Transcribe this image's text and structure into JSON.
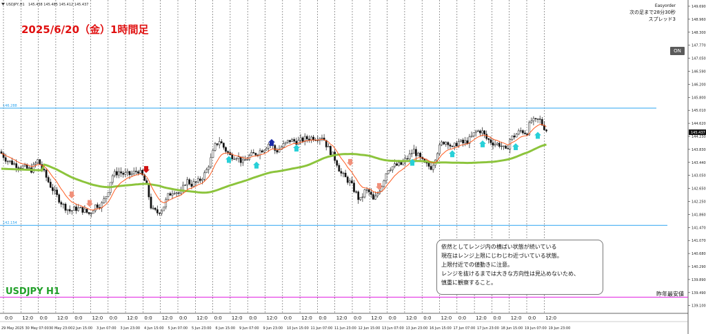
{
  "header": {
    "symbol_label": "USDJPY,H1",
    "ohlc": "145.438 145.485 145.412 145.437"
  },
  "chart_title": "2025/6/20（金）1時間足",
  "symbol_big": "USDJPY H1",
  "ea_panel": {
    "name": "Easyorder",
    "next_bar": "次の足まで28分30秒",
    "spread": "スプレッド3",
    "on_button": "ON"
  },
  "note": {
    "lines": [
      "依然としてレンジ内の横ばい状態が続いている",
      "現在はレンジ上限にじわじわ近づいている状態。",
      "上限付近での値動きに注意。",
      "レンジを抜けるまでは大きな方向性は見込めないため、",
      "慎重に観察すること。"
    ]
  },
  "level_labels": {
    "upper": "146.288",
    "lower": "142.154",
    "prev_year_low_label": "昨年最安値"
  },
  "colors": {
    "candles": "#111111",
    "ma_fast": "#ff5a1e",
    "ma_slow": "#8cc43c",
    "range_lines": "#2aa4f0",
    "prev_year_low": "#e020e0",
    "title_red": "#e01010",
    "title_green": "#22a02a"
  },
  "chart_data": {
    "type": "candlestick",
    "title": "2025/6/20（金）1時間足",
    "symbol": "USDJPY H1",
    "y_ticks": [
      "149.690",
      "148.960",
      "148.300",
      "147.770",
      "147.050",
      "146.590",
      "146.200",
      "145.800",
      "145.010",
      "144.620",
      "144.230",
      "143.830",
      "143.440",
      "143.050",
      "142.650",
      "142.250",
      "141.860",
      "141.470",
      "141.070",
      "140.680",
      "140.290",
      "139.890",
      "139.490",
      "139.100"
    ],
    "current_price": "145.437",
    "x_ticks": [
      "29 May 2025",
      "30 May 07:00",
      "30 May 23:00",
      "2 Jun 15:00",
      "3 Jun 07:00",
      "3 Jun 23:00",
      "4 Jun 15:00",
      "5 Jun 07:00",
      "5 Jun 23:00",
      "6 Jun 15:00",
      "9 Jun 07:00",
      "9 Jun 23:00",
      "10 Jun 15:00",
      "11 Jun 07:00",
      "11 Jun 23:00",
      "12 Jun 15:00",
      "13 Jun 07:00",
      "13 Jun 23:00",
      "16 Jun 15:00",
      "17 Jun 07:00",
      "17 Jun 23:00",
      "18 Jun 15:00",
      "19 Jun 07:00",
      "19 Jun 23:00"
    ],
    "hour_ticks": [
      "0:0",
      "12:0",
      "0:0",
      "12:0",
      "0:0",
      "12:0",
      "0:0",
      "12:0",
      "0:0",
      "12:0",
      "0:0",
      "12:0",
      "0:0",
      "12:0",
      "0:0",
      "12:0",
      "0:0",
      "12:0",
      "0:0",
      "12:0",
      "0:0",
      "12:0",
      "0:0",
      "12:0",
      "0:0",
      "12:0",
      "0:0",
      "12:0",
      "0:0",
      "12:0",
      "0:0",
      "12:0"
    ],
    "path_points": [
      [
        0,
        144.75
      ],
      [
        10,
        144.45
      ],
      [
        22,
        144.3
      ],
      [
        34,
        144.2
      ],
      [
        45,
        144.1
      ],
      [
        55,
        144.45
      ],
      [
        62,
        144.1
      ],
      [
        72,
        143.6
      ],
      [
        82,
        143.2
      ],
      [
        92,
        142.85
      ],
      [
        102,
        142.65
      ],
      [
        110,
        142.75
      ],
      [
        120,
        142.7
      ],
      [
        130,
        142.55
      ],
      [
        138,
        142.85
      ],
      [
        148,
        142.9
      ],
      [
        156,
        143.3
      ],
      [
        162,
        143.9
      ],
      [
        172,
        144.05
      ],
      [
        180,
        143.95
      ],
      [
        190,
        143.95
      ],
      [
        200,
        144.1
      ],
      [
        208,
        143.85
      ],
      [
        214,
        143.4
      ],
      [
        220,
        142.7
      ],
      [
        228,
        142.6
      ],
      [
        236,
        142.75
      ],
      [
        244,
        143.2
      ],
      [
        252,
        143.4
      ],
      [
        262,
        143.25
      ],
      [
        270,
        143.75
      ],
      [
        278,
        143.6
      ],
      [
        288,
        143.7
      ],
      [
        298,
        144.0
      ],
      [
        306,
        144.5
      ],
      [
        312,
        144.95
      ],
      [
        318,
        145.15
      ],
      [
        326,
        144.85
      ],
      [
        334,
        144.6
      ],
      [
        344,
        144.6
      ],
      [
        352,
        144.35
      ],
      [
        362,
        144.6
      ],
      [
        372,
        144.7
      ],
      [
        382,
        144.85
      ],
      [
        392,
        145.1
      ],
      [
        400,
        144.75
      ],
      [
        410,
        144.95
      ],
      [
        420,
        145.15
      ],
      [
        432,
        145.1
      ],
      [
        442,
        145.2
      ],
      [
        452,
        145.25
      ],
      [
        460,
        145.25
      ],
      [
        468,
        145.3
      ],
      [
        474,
        144.95
      ],
      [
        482,
        144.65
      ],
      [
        488,
        144.4
      ],
      [
        494,
        144.0
      ],
      [
        500,
        143.85
      ],
      [
        508,
        143.65
      ],
      [
        516,
        143.3
      ],
      [
        522,
        143.0
      ],
      [
        530,
        143.4
      ],
      [
        536,
        143.3
      ],
      [
        542,
        143.0
      ],
      [
        548,
        143.3
      ],
      [
        554,
        143.6
      ],
      [
        562,
        144.15
      ],
      [
        572,
        144.25
      ],
      [
        582,
        144.3
      ],
      [
        592,
        144.55
      ],
      [
        600,
        144.8
      ],
      [
        608,
        144.55
      ],
      [
        616,
        144.3
      ],
      [
        626,
        144.2
      ],
      [
        634,
        144.75
      ],
      [
        642,
        145.1
      ],
      [
        650,
        145.1
      ],
      [
        656,
        144.85
      ],
      [
        664,
        145.1
      ],
      [
        672,
        145.05
      ],
      [
        680,
        145.15
      ],
      [
        690,
        145.45
      ],
      [
        698,
        145.5
      ],
      [
        706,
        145.2
      ],
      [
        716,
        145.05
      ],
      [
        726,
        145.0
      ],
      [
        734,
        144.75
      ],
      [
        740,
        145.2
      ],
      [
        748,
        145.35
      ],
      [
        756,
        145.5
      ],
      [
        764,
        145.4
      ],
      [
        770,
        145.85
      ],
      [
        776,
        145.8
      ],
      [
        782,
        145.9
      ],
      [
        788,
        145.65
      ],
      [
        795,
        145.44
      ]
    ],
    "series": [
      {
        "values": "fast moving average (computed)"
      },
      {
        "values": "slow moving average (computed)"
      }
    ],
    "levels": [
      {
        "price": 146.288,
        "label": "146.288"
      },
      {
        "price": 142.154,
        "label": "142.154"
      },
      {
        "price": 139.62,
        "label": "昨年最安値"
      }
    ],
    "sell_arrows": [
      {
        "bar_x": 104,
        "price": 143.15
      },
      {
        "bar_x": 130,
        "price": 142.85
      },
      {
        "bar_x": 212,
        "price": 144.05
      },
      {
        "bar_x": 508,
        "price": 144.3
      },
      {
        "bar_x": 550,
        "price": 143.45
      }
    ],
    "buy_arrows": [
      {
        "bar_x": 332,
        "price": 144.55
      },
      {
        "bar_x": 372,
        "price": 144.35
      },
      {
        "bar_x": 394,
        "price": 145.15
      },
      {
        "bar_x": 430,
        "price": 144.95
      },
      {
        "bar_x": 598,
        "price": 144.45
      },
      {
        "bar_x": 656,
        "price": 144.75
      },
      {
        "bar_x": 700,
        "price": 145.1
      },
      {
        "bar_x": 748,
        "price": 145.0
      },
      {
        "bar_x": 780,
        "price": 145.4
      }
    ],
    "y_range": [
      139.05,
      150.1
    ],
    "grid": "vertical dotted"
  }
}
